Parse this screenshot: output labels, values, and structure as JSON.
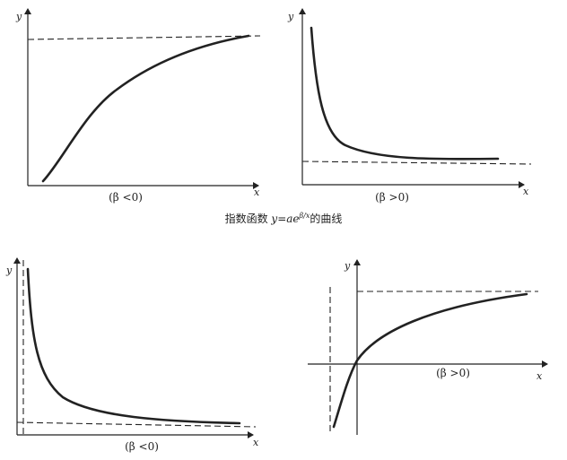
{
  "caption": {
    "prefix": "指数函数 ",
    "formula_y": "y",
    "formula_eq": "=",
    "formula_a": "ae",
    "formula_exp": "β/x",
    "suffix": "的曲线"
  },
  "panels": [
    {
      "id": "top-left",
      "y_label": "y",
      "x_label": "x",
      "condition": "(β <0)"
    },
    {
      "id": "top-right",
      "y_label": "y",
      "x_label": "x",
      "condition": "(β >0)"
    },
    {
      "id": "bottom-left",
      "y_label": "y",
      "x_label": "x",
      "condition": "(β <0)"
    },
    {
      "id": "bottom-right",
      "y_label": "y",
      "x_label": "x",
      "condition": "(β >0)"
    }
  ]
}
